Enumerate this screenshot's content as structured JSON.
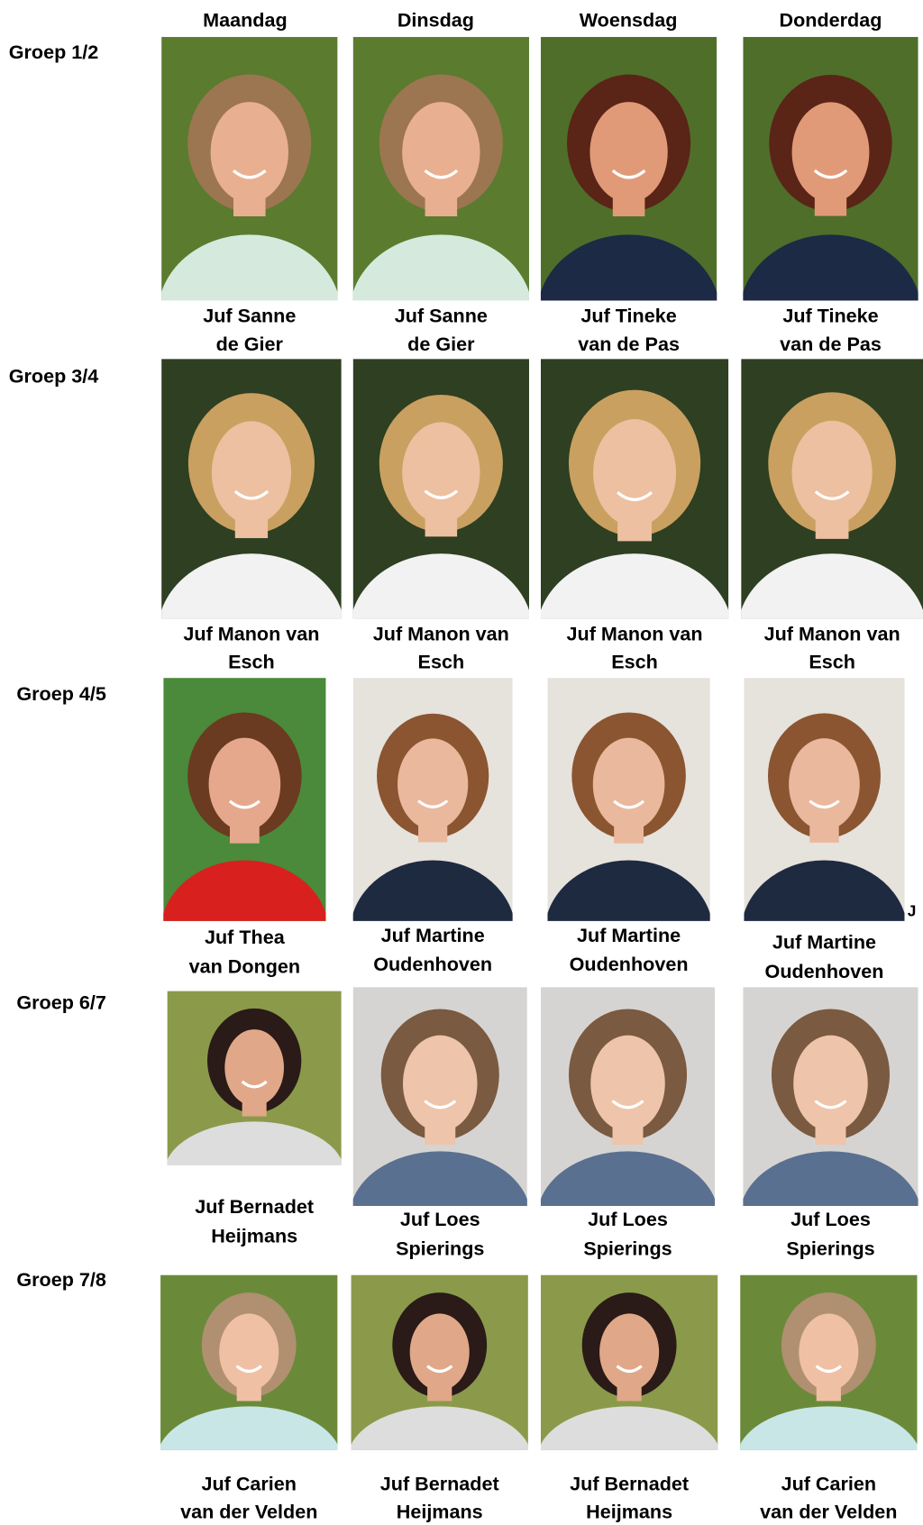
{
  "days": [
    "Maandag",
    "Dinsdag",
    "Woensdag",
    "Donderdag"
  ],
  "rows": [
    {
      "group": "Groep 1/2",
      "cells": [
        [
          "Juf Sanne",
          "de Gier"
        ],
        [
          "Juf Sanne",
          "de Gier"
        ],
        [
          "Juf Tineke",
          "van de Pas"
        ],
        [
          "Juf Tineke",
          "van de Pas"
        ]
      ]
    },
    {
      "group": "Groep 3/4",
      "cells": [
        [
          "Juf Manon van",
          "Esch"
        ],
        [
          "Juf Manon van",
          "Esch"
        ],
        [
          "Juf Manon van",
          "Esch"
        ],
        [
          "Juf Manon van",
          "Esch"
        ]
      ]
    },
    {
      "group": "Groep 4/5",
      "cells": [
        [
          "Juf Thea",
          "van Dongen"
        ],
        [
          "Juf Martine",
          "Oudenhoven"
        ],
        [
          "Juf Martine",
          "Oudenhoven"
        ],
        [
          "Juf Martine",
          "Oudenhoven"
        ]
      ]
    },
    {
      "group": "Groep 6/7",
      "cells": [
        [
          "Juf Bernadet",
          "Heijmans"
        ],
        [
          "Juf Loes",
          "Spierings"
        ],
        [
          "Juf Loes",
          "Spierings"
        ],
        [
          "Juf Loes",
          "Spierings"
        ]
      ]
    },
    {
      "group": "Groep 7/8",
      "cells": [
        [
          "Juf Carien",
          "van der Velden"
        ],
        [
          "Juf Bernadet",
          "Heijmans"
        ],
        [
          "Juf Bernadet",
          "Heijmans"
        ],
        [
          "Juf Carien",
          "van der Velden"
        ]
      ]
    }
  ],
  "stray_text": "J"
}
